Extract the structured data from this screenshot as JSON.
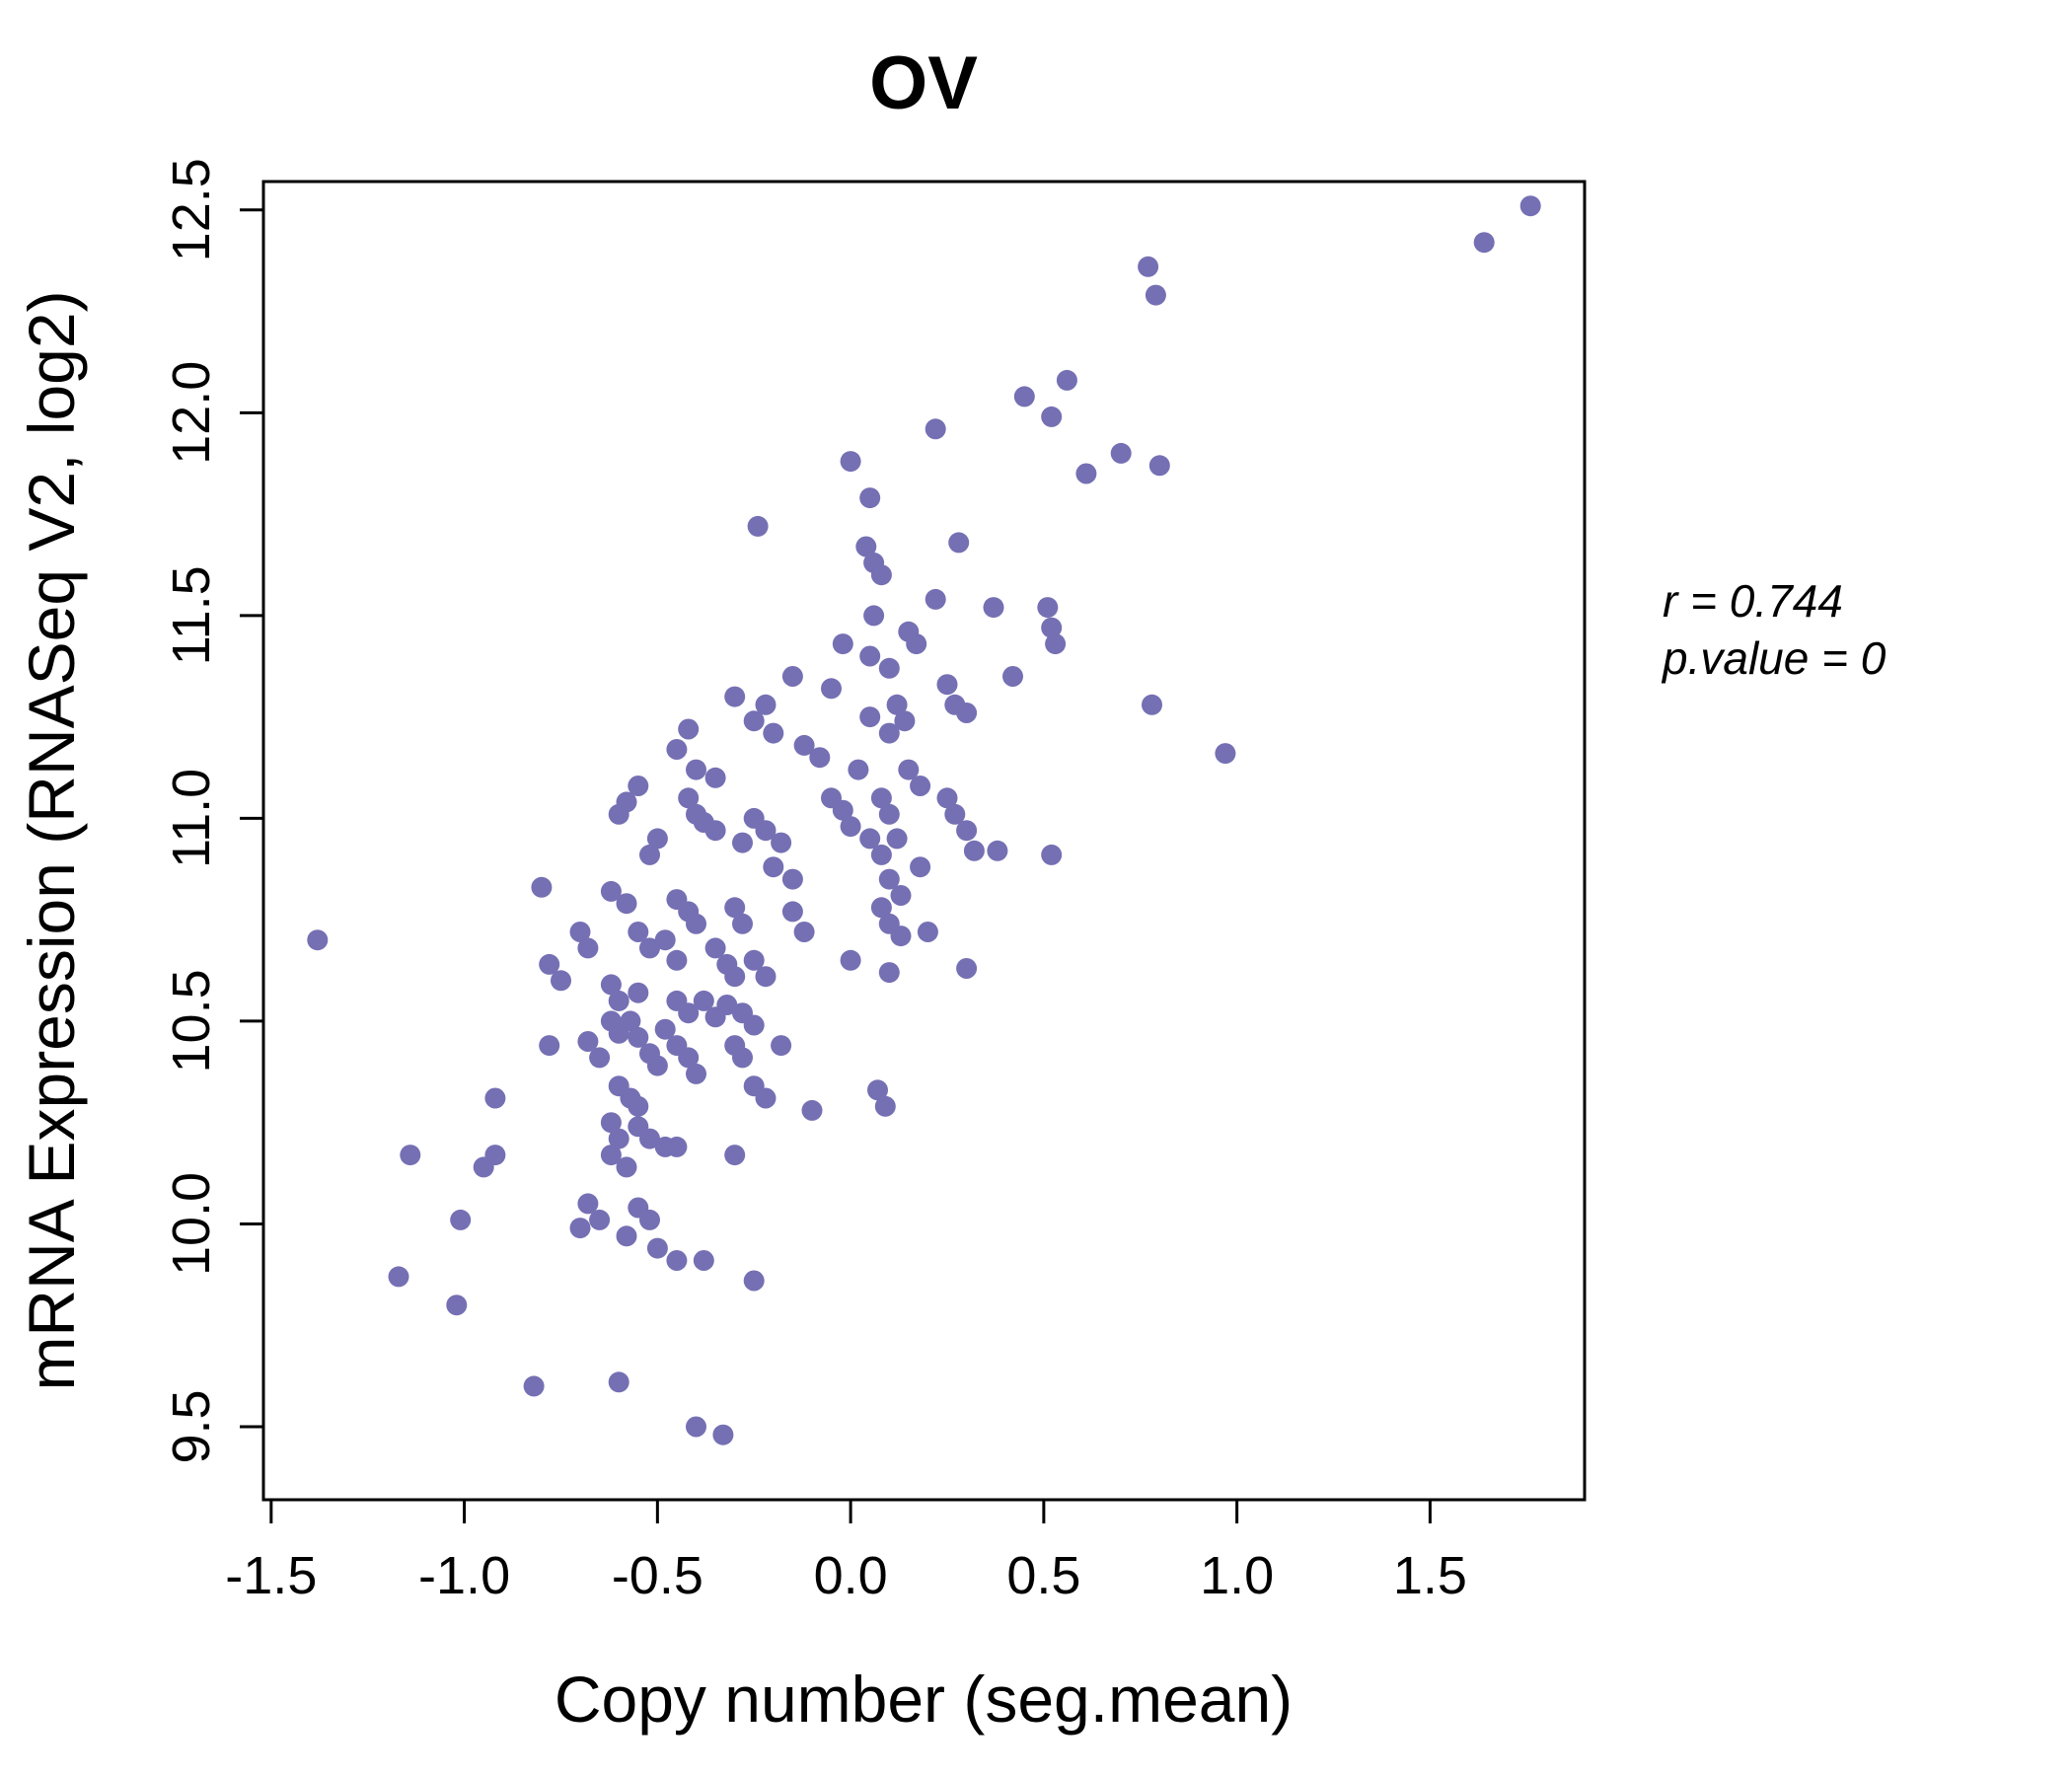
{
  "chart_data": {
    "type": "scatter",
    "title": "OV",
    "xlabel": "Copy number (seg.mean)",
    "ylabel": "mRNA Expression (RNASeq V2, log2)",
    "xlim": [
      -1.52,
      1.9
    ],
    "ylim": [
      9.32,
      12.57
    ],
    "xticks": [
      -1.5,
      -1.0,
      -0.5,
      0.0,
      0.5,
      1.0,
      1.5
    ],
    "yticks": [
      9.5,
      10.0,
      10.5,
      11.0,
      11.5,
      12.0,
      12.5
    ],
    "grid": false,
    "legend": "none",
    "point_color": "#7570b3",
    "title_color": "#7a76b9",
    "annotation": {
      "line1": "r = 0.744",
      "line2": "p.value = 0"
    },
    "points": [
      [
        1.76,
        12.51
      ],
      [
        1.64,
        12.42
      ],
      [
        0.77,
        12.36
      ],
      [
        0.79,
        12.29
      ],
      [
        0.56,
        12.08
      ],
      [
        0.45,
        12.04
      ],
      [
        0.52,
        11.99
      ],
      [
        0.22,
        11.96
      ],
      [
        0.7,
        11.9
      ],
      [
        0.0,
        11.88
      ],
      [
        0.8,
        11.87
      ],
      [
        0.61,
        11.85
      ],
      [
        0.05,
        11.79
      ],
      [
        -0.24,
        11.72
      ],
      [
        0.28,
        11.68
      ],
      [
        0.04,
        11.67
      ],
      [
        0.06,
        11.63
      ],
      [
        0.08,
        11.6
      ],
      [
        0.22,
        11.54
      ],
      [
        0.37,
        11.52
      ],
      [
        0.51,
        11.52
      ],
      [
        0.52,
        11.47
      ],
      [
        0.53,
        11.43
      ],
      [
        0.06,
        11.5
      ],
      [
        0.15,
        11.46
      ],
      [
        0.17,
        11.43
      ],
      [
        -0.02,
        11.43
      ],
      [
        0.05,
        11.4
      ],
      [
        0.1,
        11.37
      ],
      [
        0.42,
        11.35
      ],
      [
        -0.15,
        11.35
      ],
      [
        -0.05,
        11.32
      ],
      [
        0.25,
        11.33
      ],
      [
        0.27,
        11.28
      ],
      [
        0.3,
        11.26
      ],
      [
        -0.3,
        11.3
      ],
      [
        -0.22,
        11.28
      ],
      [
        -0.25,
        11.24
      ],
      [
        -0.2,
        11.21
      ],
      [
        0.12,
        11.28
      ],
      [
        0.14,
        11.24
      ],
      [
        0.1,
        11.21
      ],
      [
        0.05,
        11.25
      ],
      [
        0.78,
        11.28
      ],
      [
        0.97,
        11.16
      ],
      [
        -0.42,
        11.22
      ],
      [
        -0.45,
        11.17
      ],
      [
        -0.12,
        11.18
      ],
      [
        -0.08,
        11.15
      ],
      [
        0.02,
        11.12
      ],
      [
        0.15,
        11.12
      ],
      [
        0.18,
        11.08
      ],
      [
        -0.4,
        11.12
      ],
      [
        -0.35,
        11.1
      ],
      [
        -0.05,
        11.05
      ],
      [
        -0.02,
        11.02
      ],
      [
        0.08,
        11.05
      ],
      [
        0.1,
        11.01
      ],
      [
        0.25,
        11.05
      ],
      [
        0.27,
        11.01
      ],
      [
        -0.55,
        11.08
      ],
      [
        -0.58,
        11.04
      ],
      [
        -0.6,
        11.01
      ],
      [
        -0.42,
        11.05
      ],
      [
        -0.4,
        11.01
      ],
      [
        -0.38,
        10.99
      ],
      [
        -0.35,
        10.97
      ],
      [
        -0.25,
        11.0
      ],
      [
        -0.22,
        10.97
      ],
      [
        -0.18,
        10.94
      ],
      [
        -0.28,
        10.94
      ],
      [
        0.0,
        10.98
      ],
      [
        0.05,
        10.95
      ],
      [
        0.08,
        10.91
      ],
      [
        0.12,
        10.95
      ],
      [
        0.3,
        10.97
      ],
      [
        0.32,
        10.92
      ],
      [
        0.38,
        10.92
      ],
      [
        0.52,
        10.91
      ],
      [
        -0.5,
        10.95
      ],
      [
        -0.52,
        10.91
      ],
      [
        -0.2,
        10.88
      ],
      [
        -0.15,
        10.85
      ],
      [
        0.1,
        10.85
      ],
      [
        0.13,
        10.81
      ],
      [
        0.18,
        10.88
      ],
      [
        -0.8,
        10.83
      ],
      [
        -0.62,
        10.82
      ],
      [
        -0.58,
        10.79
      ],
      [
        -0.45,
        10.8
      ],
      [
        -0.42,
        10.77
      ],
      [
        -0.4,
        10.74
      ],
      [
        -0.3,
        10.78
      ],
      [
        -0.28,
        10.74
      ],
      [
        -0.15,
        10.77
      ],
      [
        -0.12,
        10.72
      ],
      [
        0.08,
        10.78
      ],
      [
        0.1,
        10.74
      ],
      [
        0.13,
        10.71
      ],
      [
        0.2,
        10.72
      ],
      [
        -0.7,
        10.72
      ],
      [
        -0.68,
        10.68
      ],
      [
        -0.55,
        10.72
      ],
      [
        -0.52,
        10.68
      ],
      [
        -0.48,
        10.7
      ],
      [
        -0.45,
        10.65
      ],
      [
        -0.35,
        10.68
      ],
      [
        -0.32,
        10.64
      ],
      [
        -0.3,
        10.61
      ],
      [
        -0.25,
        10.65
      ],
      [
        -0.22,
        10.61
      ],
      [
        0.0,
        10.65
      ],
      [
        0.1,
        10.62
      ],
      [
        0.3,
        10.63
      ],
      [
        -1.38,
        10.7
      ],
      [
        -0.78,
        10.64
      ],
      [
        -0.75,
        10.6
      ],
      [
        -0.62,
        10.59
      ],
      [
        -0.6,
        10.55
      ],
      [
        -0.55,
        10.57
      ],
      [
        -0.45,
        10.55
      ],
      [
        -0.42,
        10.52
      ],
      [
        -0.38,
        10.55
      ],
      [
        -0.35,
        10.51
      ],
      [
        -0.32,
        10.54
      ],
      [
        -0.28,
        10.52
      ],
      [
        -0.25,
        10.49
      ],
      [
        -0.62,
        10.5
      ],
      [
        -0.6,
        10.47
      ],
      [
        -0.57,
        10.5
      ],
      [
        -0.55,
        10.46
      ],
      [
        -0.48,
        10.48
      ],
      [
        -0.45,
        10.44
      ],
      [
        -0.68,
        10.45
      ],
      [
        -0.65,
        10.41
      ],
      [
        -0.78,
        10.44
      ],
      [
        -0.52,
        10.42
      ],
      [
        -0.5,
        10.39
      ],
      [
        -0.42,
        10.41
      ],
      [
        -0.4,
        10.37
      ],
      [
        -0.3,
        10.44
      ],
      [
        -0.28,
        10.41
      ],
      [
        -0.18,
        10.44
      ],
      [
        -0.6,
        10.34
      ],
      [
        -0.57,
        10.31
      ],
      [
        -0.55,
        10.29
      ],
      [
        -0.92,
        10.31
      ],
      [
        -0.25,
        10.34
      ],
      [
        -0.22,
        10.31
      ],
      [
        -0.1,
        10.28
      ],
      [
        0.07,
        10.33
      ],
      [
        0.09,
        10.29
      ],
      [
        -0.62,
        10.25
      ],
      [
        -0.6,
        10.21
      ],
      [
        -0.55,
        10.24
      ],
      [
        -0.52,
        10.21
      ],
      [
        -0.48,
        10.19
      ],
      [
        -0.92,
        10.17
      ],
      [
        -0.95,
        10.14
      ],
      [
        -1.14,
        10.17
      ],
      [
        -0.62,
        10.17
      ],
      [
        -0.58,
        10.14
      ],
      [
        -0.45,
        10.19
      ],
      [
        -0.3,
        10.17
      ],
      [
        -0.68,
        10.05
      ],
      [
        -0.65,
        10.01
      ],
      [
        -0.55,
        10.04
      ],
      [
        -0.52,
        10.01
      ],
      [
        -1.01,
        10.01
      ],
      [
        -0.7,
        9.99
      ],
      [
        -0.58,
        9.97
      ],
      [
        -0.5,
        9.94
      ],
      [
        -0.45,
        9.91
      ],
      [
        -0.38,
        9.91
      ],
      [
        -1.17,
        9.87
      ],
      [
        -0.25,
        9.86
      ],
      [
        -1.02,
        9.8
      ],
      [
        -0.82,
        9.6
      ],
      [
        -0.6,
        9.61
      ],
      [
        -0.4,
        9.5
      ],
      [
        -0.33,
        9.48
      ]
    ]
  }
}
